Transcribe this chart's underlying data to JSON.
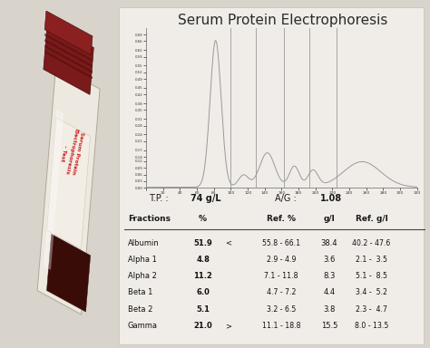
{
  "title": "Serum Protein Electrophoresis",
  "title_fontsize": 11,
  "bg_color": "#d8d4cc",
  "paper_color": "#e8e6e2",
  "tp_label": "T.P. :",
  "tp_value": "74 g/L",
  "ag_label": "A/G :",
  "ag_value": "1.08",
  "table_headers": [
    "Fractions",
    "%",
    "",
    "Ref. %",
    "g/l",
    "Ref. g/l"
  ],
  "fractions": [
    "Albumin",
    "Alpha 1",
    "Alpha 2",
    "Beta 1",
    "Beta 2",
    "Gamma"
  ],
  "pct": [
    "51.9",
    "4.8",
    "11.2",
    "6.0",
    "5.1",
    "21.0"
  ],
  "pct_sym": [
    "<",
    "",
    "",
    "",
    "",
    ">"
  ],
  "ref_pct": [
    "55.8 - 66.1",
    "2.9 - 4.9",
    "7.1 - 11.8",
    "4.7 - 7.2",
    "3.2 - 6.5",
    "11.1 - 18.8"
  ],
  "gl": [
    "38.4",
    "3.6",
    "8.3",
    "4.4",
    "3.8",
    "15.5"
  ],
  "ref_gl": [
    "40.2 - 47.6",
    "2.1 -  3.5",
    "5.1 -  8.5",
    "3.4 -  5.2",
    "2.3 -  4.7",
    "8.0 - 13.5"
  ],
  "tube_color_cap": "#7a1a1a",
  "tube_color_body": "#e0d8cc",
  "tube_label_color": "#cc2222",
  "ytick_labels": [
    "0.00",
    "0.03",
    "0.06",
    "0.09",
    "0.12",
    "0.14",
    "0.17",
    "0.21",
    "0.24",
    "0.28",
    "0.31",
    "0.35",
    "0.38",
    "0.42",
    "0.45",
    "0.49",
    "0.52",
    "0.55",
    "0.59",
    "0.62",
    "0.66",
    "0.69"
  ],
  "ytick_vals": [
    0.0,
    0.03,
    0.06,
    0.09,
    0.12,
    0.14,
    0.17,
    0.21,
    0.24,
    0.28,
    0.31,
    0.35,
    0.38,
    0.42,
    0.45,
    0.49,
    0.52,
    0.55,
    0.59,
    0.62,
    0.66,
    0.69
  ],
  "xtick_vals": [
    0,
    20,
    40,
    60,
    80,
    100,
    120,
    140,
    160,
    180,
    200,
    220,
    240,
    260,
    280,
    300,
    320
  ],
  "curve_color": "#999999",
  "divider_color": "#888888",
  "dividers_x": [
    100,
    130,
    163,
    193,
    225
  ]
}
